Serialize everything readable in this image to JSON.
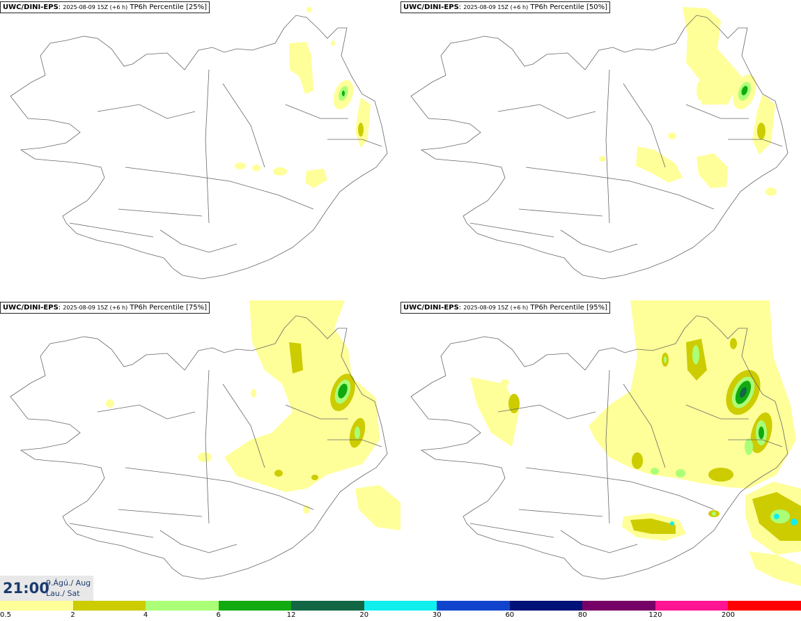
{
  "panels": [
    {
      "model": "UWC/DINI-EPS",
      "run": "2025-08-09 15Z (+6 h)",
      "product": "TP6h Percentile [25%]"
    },
    {
      "model": "UWC/DINI-EPS",
      "run": "2025-08-09 15Z (+6 h)",
      "product": "TP6h Percentile [50%]"
    },
    {
      "model": "UWC/DINI-EPS",
      "run": "2025-08-09 15Z (+6 h)",
      "product": "TP6h Percentile [75%]"
    },
    {
      "model": "UWC/DINI-EPS",
      "run": "2025-08-09 15Z (+6 h)",
      "product": "TP6h Percentile [95%]"
    }
  ],
  "time": {
    "hour": "21:00",
    "date": "9.Ágú./ Aug",
    "day": "Lau./ Sat"
  },
  "legend": {
    "ticks": [
      "0.5",
      "2",
      "4",
      "6",
      "12",
      "20",
      "30",
      "60",
      "80",
      "120",
      "200"
    ],
    "colors": [
      "#ffff99",
      "#cccc00",
      "#aaff77",
      "#11aa11",
      "#116644",
      "#11eeee",
      "#1144cc",
      "#001177",
      "#770066",
      "#ff1493",
      "#ff0000"
    ]
  }
}
